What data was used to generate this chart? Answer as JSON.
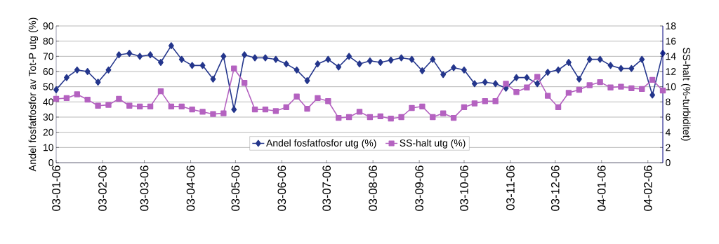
{
  "chart_data": {
    "type": "line",
    "ylabel": "Andel fosfatfosfor av Tot-P utg (%)",
    "y2label": "SS-halt (%-turbiditet)",
    "x": [
      "2003-01-06",
      "2003-01-13",
      "2003-01-20",
      "2003-01-27",
      "2003-02-03",
      "2003-02-10",
      "2003-02-17",
      "2003-02-24",
      "2003-03-03",
      "2003-03-10",
      "2003-03-17",
      "2003-03-24",
      "2003-03-31",
      "2003-04-07",
      "2003-04-14",
      "2003-04-21",
      "2003-04-28",
      "2003-05-05",
      "2003-05-12",
      "2003-05-19",
      "2003-05-26",
      "2003-06-02",
      "2003-06-09",
      "2003-06-16",
      "2003-06-23",
      "2003-06-30",
      "2003-07-07",
      "2003-07-14",
      "2003-07-21",
      "2003-07-28",
      "2003-08-04",
      "2003-08-11",
      "2003-08-18",
      "2003-08-25",
      "2003-09-01",
      "2003-09-08",
      "2003-09-15",
      "2003-09-22",
      "2003-09-29",
      "2003-10-06",
      "2003-10-13",
      "2003-10-20",
      "2003-10-27",
      "2003-11-03",
      "2003-11-10",
      "2003-11-17",
      "2003-11-24",
      "2003-12-01",
      "2003-12-08",
      "2003-12-15",
      "2003-12-22",
      "2003-12-29",
      "2004-01-05",
      "2004-01-12",
      "2004-01-19",
      "2004-01-26",
      "2004-02-02",
      "2004-02-09",
      "2004-02-16"
    ],
    "series": [
      {
        "name": "Andel fosfatfosfor utg (%)",
        "color": "#24368c",
        "marker": "diamond",
        "values": [
          48,
          56,
          61,
          60,
          53,
          61,
          71,
          72,
          70,
          71,
          66,
          77,
          68,
          64,
          64,
          55,
          70,
          35,
          71,
          69,
          69,
          68,
          65,
          61,
          54,
          65,
          68,
          63,
          70,
          65,
          67,
          66,
          67.5,
          69,
          68,
          60.5,
          68,
          58,
          62.5,
          61,
          52,
          53,
          52,
          49,
          56,
          56,
          52,
          59.5,
          61,
          66,
          55,
          68,
          68,
          64,
          62,
          62,
          68,
          44.5,
          72
        ]
      },
      {
        "name": "SS-halt utg (%)",
        "color": "#b462c0",
        "marker": "square",
        "axis": "y2",
        "values": [
          8.4,
          8.5,
          9.0,
          8.3,
          7.5,
          7.6,
          8.4,
          7.5,
          7.4,
          7.4,
          9.4,
          7.4,
          7.4,
          7.0,
          6.7,
          6.4,
          6.5,
          12.4,
          10.5,
          7.0,
          7.0,
          6.8,
          7.3,
          8.7,
          7.1,
          8.5,
          8.1,
          5.9,
          6.0,
          6.7,
          6.0,
          6.1,
          5.8,
          6.0,
          7.2,
          7.4,
          6.0,
          6.5,
          5.9,
          7.3,
          7.8,
          8.1,
          8.1,
          10.4,
          9.3,
          9.9,
          11.3,
          8.8,
          7.3,
          9.2,
          9.6,
          10.2,
          10.6,
          9.9,
          10.0,
          9.8,
          9.7,
          10.9,
          9.5
        ]
      }
    ],
    "xlim": [
      "2003-01-06",
      "2004-02-16"
    ],
    "xticks": [
      {
        "value": "2003-01-06",
        "label": "03-01-06"
      },
      {
        "value": "2003-02-06",
        "label": "03-02-06"
      },
      {
        "value": "2003-03-06",
        "label": "03-03-06"
      },
      {
        "value": "2003-04-06",
        "label": "03-04-06"
      },
      {
        "value": "2003-05-06",
        "label": "03-05-06"
      },
      {
        "value": "2003-06-06",
        "label": "03-06-06"
      },
      {
        "value": "2003-07-06",
        "label": "03-07-06"
      },
      {
        "value": "2003-08-06",
        "label": "03-08-06"
      },
      {
        "value": "2003-09-06",
        "label": "03-09-06"
      },
      {
        "value": "2003-10-06",
        "label": "03-10-06"
      },
      {
        "value": "2003-11-06",
        "label": "03-11-06"
      },
      {
        "value": "2003-12-06",
        "label": "03-12-06"
      },
      {
        "value": "2004-01-06",
        "label": "04-01-06"
      },
      {
        "value": "2004-02-06",
        "label": "04-02-06"
      }
    ],
    "ylim": [
      0,
      90
    ],
    "yticks": [
      0,
      10,
      20,
      30,
      40,
      50,
      60,
      70,
      80,
      90
    ],
    "y2lim": [
      0,
      18
    ],
    "y2ticks": [
      0,
      2,
      4,
      6,
      8,
      10,
      12,
      14,
      16,
      18
    ],
    "grid": "y",
    "legend": "bottom",
    "line_style": "solid"
  }
}
